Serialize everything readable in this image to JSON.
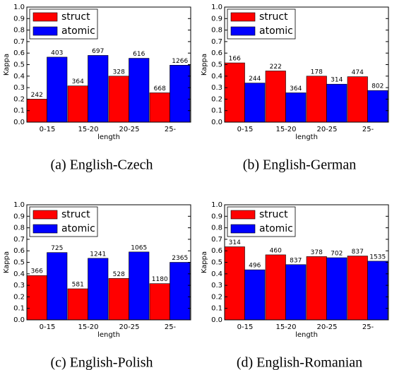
{
  "chart_data": [
    {
      "type": "bar",
      "caption": "(a) English-Czech",
      "xlabel": "length",
      "ylabel": "Kappa",
      "categories": [
        "0-15",
        "15-20",
        "20-25",
        "25-"
      ],
      "series": [
        {
          "name": "struct",
          "color": "#ff0000",
          "values": [
            0.2,
            0.315,
            0.4,
            0.255
          ],
          "counts": [
            "242",
            "364",
            "328",
            "668"
          ]
        },
        {
          "name": "atomic",
          "color": "#0000ff",
          "values": [
            0.565,
            0.58,
            0.555,
            0.495
          ],
          "counts": [
            "403",
            "697",
            "616",
            "1266"
          ]
        }
      ],
      "ylim": [
        0,
        1
      ],
      "yticks": [
        {
          "value": 0,
          "label": "0.0"
        },
        {
          "value": 0.1,
          "label": "0.1"
        },
        {
          "value": 0.2,
          "label": "0.2"
        },
        {
          "value": 0.3,
          "label": "0.3"
        },
        {
          "value": 0.4,
          "label": "0.4"
        },
        {
          "value": 0.5,
          "label": "0.5"
        },
        {
          "value": 0.6,
          "label": "0.6"
        },
        {
          "value": 0.7,
          "label": "0.7"
        },
        {
          "value": 0.8,
          "label": "0.8"
        },
        {
          "value": 0.9,
          "label": "0.9"
        },
        {
          "value": 1,
          "label": "1.0"
        }
      ],
      "legend": "upper left"
    },
    {
      "type": "bar",
      "caption": "(b) English-German",
      "xlabel": "length",
      "ylabel": "Kappa",
      "categories": [
        "0-15",
        "15-20",
        "20-25",
        "25-"
      ],
      "series": [
        {
          "name": "struct",
          "color": "#ff0000",
          "values": [
            0.515,
            0.445,
            0.4,
            0.395
          ],
          "counts": [
            "166",
            "222",
            "178",
            "474"
          ]
        },
        {
          "name": "atomic",
          "color": "#0000ff",
          "values": [
            0.34,
            0.255,
            0.33,
            0.275
          ],
          "counts": [
            "244",
            "364",
            "314",
            "802"
          ]
        }
      ],
      "ylim": [
        0,
        1
      ],
      "yticks": [
        {
          "value": 0,
          "label": "0.0"
        },
        {
          "value": 0.1,
          "label": "0.1"
        },
        {
          "value": 0.2,
          "label": "0.2"
        },
        {
          "value": 0.3,
          "label": "0.3"
        },
        {
          "value": 0.4,
          "label": "0.4"
        },
        {
          "value": 0.5,
          "label": "0.5"
        },
        {
          "value": 0.6,
          "label": "0.6"
        },
        {
          "value": 0.7,
          "label": "0.7"
        },
        {
          "value": 0.8,
          "label": "0.8"
        },
        {
          "value": 0.9,
          "label": "0.9"
        },
        {
          "value": 1,
          "label": "1.0"
        }
      ],
      "legend": "upper left"
    },
    {
      "type": "bar",
      "caption": "(c) English-Polish",
      "xlabel": "length",
      "ylabel": "Kappa",
      "categories": [
        "0-15",
        "15-20",
        "20-25",
        "25-"
      ],
      "series": [
        {
          "name": "struct",
          "color": "#ff0000",
          "values": [
            0.385,
            0.27,
            0.36,
            0.315
          ],
          "counts": [
            "366",
            "581",
            "528",
            "1180"
          ]
        },
        {
          "name": "atomic",
          "color": "#0000ff",
          "values": [
            0.585,
            0.535,
            0.59,
            0.5
          ],
          "counts": [
            "725",
            "1241",
            "1065",
            "2365"
          ]
        }
      ],
      "ylim": [
        0,
        1
      ],
      "yticks": [
        {
          "value": 0,
          "label": "0.0"
        },
        {
          "value": 0.1,
          "label": "0.1"
        },
        {
          "value": 0.2,
          "label": "0.2"
        },
        {
          "value": 0.3,
          "label": "0.3"
        },
        {
          "value": 0.4,
          "label": "0.4"
        },
        {
          "value": 0.5,
          "label": "0.5"
        },
        {
          "value": 0.6,
          "label": "0.6"
        },
        {
          "value": 0.7,
          "label": "0.7"
        },
        {
          "value": 0.8,
          "label": "0.8"
        },
        {
          "value": 0.9,
          "label": "0.9"
        },
        {
          "value": 1,
          "label": "1.0"
        }
      ],
      "legend": "upper left"
    },
    {
      "type": "bar",
      "caption": "(d) English-Romanian",
      "xlabel": "length",
      "ylabel": "Kappa",
      "categories": [
        "0-15",
        "15-20",
        "20-25",
        "25-"
      ],
      "series": [
        {
          "name": "struct",
          "color": "#ff0000",
          "values": [
            0.635,
            0.565,
            0.55,
            0.555
          ],
          "counts": [
            "314",
            "460",
            "378",
            "837"
          ]
        },
        {
          "name": "atomic",
          "color": "#0000ff",
          "values": [
            0.435,
            0.48,
            0.54,
            0.51
          ],
          "counts": [
            "496",
            "837",
            "702",
            "1535"
          ]
        }
      ],
      "ylim": [
        0,
        1
      ],
      "yticks": [
        {
          "value": 0,
          "label": "0.0"
        },
        {
          "value": 0.1,
          "label": "0.1"
        },
        {
          "value": 0.2,
          "label": "0.2"
        },
        {
          "value": 0.3,
          "label": "0.3"
        },
        {
          "value": 0.4,
          "label": "0.4"
        },
        {
          "value": 0.5,
          "label": "0.5"
        },
        {
          "value": 0.6,
          "label": "0.6"
        },
        {
          "value": 0.7,
          "label": "0.7"
        },
        {
          "value": 0.8,
          "label": "0.8"
        },
        {
          "value": 0.9,
          "label": "0.9"
        },
        {
          "value": 1,
          "label": "1.0"
        }
      ],
      "legend": "upper left"
    }
  ]
}
